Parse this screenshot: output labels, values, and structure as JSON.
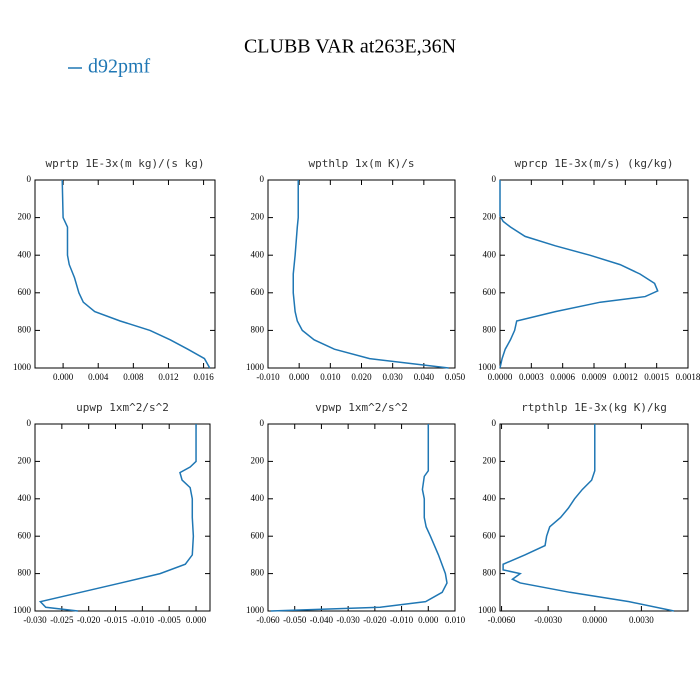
{
  "title": "CLUBB VAR at263E,36N",
  "legend": {
    "name": "d92pmf",
    "color": "#1f77b4"
  },
  "chart_data": [
    {
      "type": "line",
      "title": "wprtp  1E-3x(m kg)/(s kg)",
      "levels": [
        0,
        200,
        250,
        400,
        450,
        520,
        600,
        650,
        700,
        750,
        800,
        850,
        900,
        950,
        1000
      ],
      "values": [
        -0.0001,
        0.0,
        0.0005,
        0.0005,
        0.0007,
        0.0013,
        0.0018,
        0.0023,
        0.0036,
        0.0065,
        0.0099,
        0.0122,
        0.0142,
        0.0161,
        0.0167
      ],
      "xlim": [
        -0.0032,
        0.0173
      ],
      "xticks": [
        {
          "value": 0,
          "label": "0.000"
        },
        {
          "value": 0.004,
          "label": "0.004"
        },
        {
          "value": 0.008,
          "label": "0.008"
        },
        {
          "value": 0.012,
          "label": "0.012"
        },
        {
          "value": 0.016,
          "label": "0.016"
        }
      ],
      "ylim": [
        0,
        1000
      ],
      "yticks": [
        0,
        200,
        400,
        600,
        800,
        1000
      ],
      "y_inverted": true
    },
    {
      "type": "line",
      "title": "wpthlp  1x(m K)/s",
      "levels": [
        0,
        200,
        250,
        400,
        500,
        600,
        650,
        700,
        750,
        800,
        850,
        900,
        950,
        1000
      ],
      "values": [
        -0.0003,
        -0.0003,
        -0.0006,
        -0.0013,
        -0.0019,
        -0.0019,
        -0.0016,
        -0.0013,
        -0.0006,
        0.001,
        0.0048,
        0.0113,
        0.0226,
        0.048
      ],
      "xlim": [
        -0.01,
        0.05
      ],
      "xticks": [
        {
          "value": -0.01,
          "label": "-0.010"
        },
        {
          "value": 0,
          "label": "0.000"
        },
        {
          "value": 0.01,
          "label": "0.010"
        },
        {
          "value": 0.02,
          "label": "0.020"
        },
        {
          "value": 0.03,
          "label": "0.030"
        },
        {
          "value": 0.04,
          "label": "0.040"
        },
        {
          "value": 0.05,
          "label": "0.050"
        }
      ],
      "ylim": [
        0,
        1000
      ],
      "yticks": [
        0,
        200,
        400,
        600,
        800,
        1000
      ],
      "y_inverted": true
    },
    {
      "type": "line",
      "title": "wprcp  1E-3x(m/s) (kg/kg)",
      "levels": [
        0,
        190,
        220,
        250,
        300,
        350,
        400,
        450,
        500,
        550,
        590,
        620,
        650,
        700,
        750,
        800,
        850,
        900,
        950,
        1000
      ],
      "values": [
        0,
        0,
        3e-05,
        0.0001,
        0.00024,
        0.00053,
        0.00086,
        0.00115,
        0.00134,
        0.00148,
        0.00151,
        0.00139,
        0.00096,
        0.00053,
        0.00016,
        0.00014,
        0.0001,
        5e-05,
        2e-05,
        0
      ],
      "xlim": [
        0,
        0.0018
      ],
      "xticks": [
        {
          "value": 0,
          "label": "0.0000"
        },
        {
          "value": 0.0003,
          "label": "0.0003"
        },
        {
          "value": 0.0006,
          "label": "0.0006"
        },
        {
          "value": 0.0009,
          "label": "0.0009"
        },
        {
          "value": 0.0012,
          "label": "0.0012"
        },
        {
          "value": 0.0015,
          "label": "0.0015"
        },
        {
          "value": 0.0018,
          "label": "0.0018"
        }
      ],
      "ylim": [
        0,
        1000
      ],
      "yticks": [
        0,
        200,
        400,
        600,
        800,
        1000
      ],
      "y_inverted": true
    },
    {
      "type": "line",
      "title": "upwp  1xm^2/s^2",
      "levels": [
        0,
        200,
        230,
        260,
        300,
        340,
        400,
        500,
        600,
        700,
        750,
        800,
        850,
        900,
        950,
        980,
        1000
      ],
      "values": [
        0,
        0,
        -0.0011,
        -0.003,
        -0.0026,
        -0.0011,
        -0.0007,
        -0.0007,
        -0.0005,
        -0.0007,
        -0.002,
        -0.0067,
        -0.014,
        -0.0215,
        -0.029,
        -0.028,
        -0.022
      ],
      "xlim": [
        -0.03,
        0.0026
      ],
      "xticks": [
        {
          "value": -0.03,
          "label": "-0.030"
        },
        {
          "value": -0.025,
          "label": "-0.025"
        },
        {
          "value": -0.02,
          "label": "-0.020"
        },
        {
          "value": -0.015,
          "label": "-0.015"
        },
        {
          "value": -0.01,
          "label": "-0.010"
        },
        {
          "value": -0.005,
          "label": "-0.005"
        },
        {
          "value": 0,
          "label": "0.000"
        }
      ],
      "ylim": [
        0,
        1000
      ],
      "yticks": [
        0,
        200,
        400,
        600,
        800,
        1000
      ],
      "y_inverted": true
    },
    {
      "type": "line",
      "title": "vpwp  1xm^2/s^2",
      "levels": [
        0,
        250,
        280,
        350,
        400,
        500,
        550,
        600,
        700,
        800,
        850,
        900,
        950,
        980,
        1000
      ],
      "values": [
        0,
        0,
        -0.0015,
        -0.0022,
        -0.0015,
        -0.0015,
        -0.0008,
        0.0008,
        0.0038,
        0.0064,
        0.007,
        0.0052,
        -0.001,
        -0.018,
        -0.059
      ],
      "xlim": [
        -0.06,
        0.01
      ],
      "xticks": [
        {
          "value": -0.06,
          "label": "-0.060"
        },
        {
          "value": -0.05,
          "label": "-0.050"
        },
        {
          "value": -0.04,
          "label": "-0.040"
        },
        {
          "value": -0.03,
          "label": "-0.030"
        },
        {
          "value": -0.02,
          "label": "-0.020"
        },
        {
          "value": -0.01,
          "label": "-0.010"
        },
        {
          "value": 0,
          "label": "0.000"
        },
        {
          "value": 0.01,
          "label": "0.010"
        }
      ],
      "ylim": [
        0,
        1000
      ],
      "yticks": [
        0,
        200,
        400,
        600,
        800,
        1000
      ],
      "y_inverted": true
    },
    {
      "type": "line",
      "title": "rtpthlp  1E-3x(kg K)/kg",
      "levels": [
        0,
        250,
        300,
        350,
        400,
        450,
        500,
        550,
        600,
        650,
        700,
        750,
        780,
        800,
        830,
        850,
        900,
        950,
        1000
      ],
      "values": [
        0,
        0,
        -0.0002,
        -0.0008,
        -0.0013,
        -0.0017,
        -0.0022,
        -0.0029,
        -0.0031,
        -0.0032,
        -0.0045,
        -0.0059,
        -0.0059,
        -0.0048,
        -0.0053,
        -0.0048,
        -0.0016,
        0.0022,
        0.0051
      ],
      "xlim": [
        -0.0061,
        0.006
      ],
      "xticks": [
        {
          "value": -0.006,
          "label": "-0.0060"
        },
        {
          "value": -0.003,
          "label": "-0.0030"
        },
        {
          "value": 0,
          "label": "0.0000"
        },
        {
          "value": 0.003,
          "label": "0.0030"
        }
      ],
      "ylim": [
        0,
        1000
      ],
      "yticks": [
        0,
        200,
        400,
        600,
        800,
        1000
      ],
      "y_inverted": true
    }
  ]
}
